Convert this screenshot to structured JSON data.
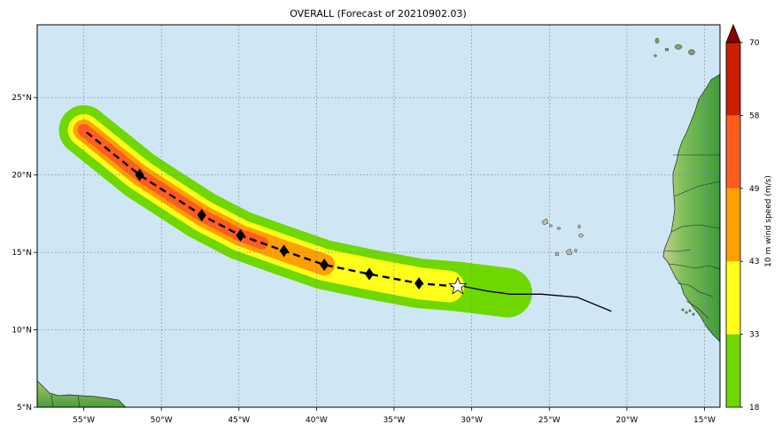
{
  "title": "OVERALL (Forecast of 20210902.03)",
  "map": {
    "lon_range": [
      -58,
      -14
    ],
    "lat_range": [
      5,
      29.7
    ],
    "ocean_color": "#cfe6f5",
    "land_color": "#6fb04d",
    "grid_color": "#7f8e99",
    "lon_ticks": [
      {
        "value": -55,
        "label": "55°W"
      },
      {
        "value": -50,
        "label": "50°W"
      },
      {
        "value": -45,
        "label": "45°W"
      },
      {
        "value": -40,
        "label": "40°W"
      },
      {
        "value": -35,
        "label": "35°W"
      },
      {
        "value": -30,
        "label": "30°W"
      },
      {
        "value": -25,
        "label": "25°W"
      },
      {
        "value": -20,
        "label": "20°W"
      },
      {
        "value": -15,
        "label": "15°W"
      }
    ],
    "lat_ticks": [
      {
        "value": 5,
        "label": "5°N"
      },
      {
        "value": 10,
        "label": "10°N"
      },
      {
        "value": 15,
        "label": "15°N"
      },
      {
        "value": 20,
        "label": "20°N"
      },
      {
        "value": 25,
        "label": "25°N"
      }
    ]
  },
  "colorbar": {
    "label": "10 m wind speed (m/s)",
    "ticks": [
      "18",
      "33",
      "43",
      "49",
      "58",
      "70"
    ],
    "bands": [
      {
        "from": 18,
        "to": 33,
        "color": "#6ed800"
      },
      {
        "from": 33,
        "to": 43,
        "color": "#ffff19"
      },
      {
        "from": 43,
        "to": 49,
        "color": "#ff9f00"
      },
      {
        "from": 49,
        "to": 58,
        "color": "#ff5c20"
      },
      {
        "from": 58,
        "to": 70,
        "color": "#c82000"
      }
    ],
    "extend_color": "#8b0000"
  },
  "chart_data": {
    "type": "map-track",
    "observed_track": [
      [
        -21.0,
        11.2
      ],
      [
        -23.2,
        12.1
      ],
      [
        -25.5,
        12.3
      ],
      [
        -27.5,
        12.3
      ],
      [
        -29.0,
        12.5
      ],
      [
        -30.5,
        12.8
      ]
    ],
    "forecast_track": [
      [
        -30.9,
        12.8
      ],
      [
        -33.4,
        13.0
      ],
      [
        -36.6,
        13.6
      ],
      [
        -39.5,
        14.2
      ],
      [
        -42.1,
        15.1
      ],
      [
        -44.9,
        16.1
      ],
      [
        -47.4,
        17.4
      ],
      [
        -51.4,
        20.0
      ],
      [
        -55.0,
        22.9
      ]
    ],
    "forecast_points": [
      [
        -33.4,
        13.0
      ],
      [
        -36.6,
        13.6
      ],
      [
        -39.5,
        14.2
      ],
      [
        -42.1,
        15.1
      ],
      [
        -44.9,
        16.1
      ],
      [
        -47.4,
        17.4
      ],
      [
        -51.4,
        20.0
      ]
    ],
    "current_position": [
      -30.9,
      12.8
    ],
    "wind_swath": [
      {
        "level": 18,
        "track": [
          [
            -27.7,
            12.4
          ],
          [
            -30.9,
            12.8
          ],
          [
            -33.4,
            13.0
          ],
          [
            -36.6,
            13.6
          ],
          [
            -39.5,
            14.2
          ],
          [
            -42.1,
            15.1
          ],
          [
            -44.9,
            16.1
          ],
          [
            -47.4,
            17.4
          ],
          [
            -51.4,
            20.0
          ],
          [
            -55.0,
            22.9
          ]
        ]
      },
      {
        "level": 33,
        "track": [
          [
            -31.5,
            12.8
          ],
          [
            -33.4,
            13.0
          ],
          [
            -36.6,
            13.6
          ],
          [
            -39.5,
            14.2
          ],
          [
            -42.1,
            15.1
          ],
          [
            -44.9,
            16.1
          ],
          [
            -47.4,
            17.4
          ],
          [
            -51.4,
            20.0
          ],
          [
            -55.0,
            22.9
          ]
        ]
      },
      {
        "level": 43,
        "track": [
          [
            -39.5,
            14.2
          ],
          [
            -42.1,
            15.1
          ],
          [
            -44.9,
            16.1
          ],
          [
            -47.4,
            17.4
          ],
          [
            -51.4,
            20.0
          ],
          [
            -55.0,
            22.9
          ]
        ]
      },
      {
        "level": 49,
        "track": [
          [
            -43.5,
            15.6
          ],
          [
            -44.9,
            16.1
          ],
          [
            -47.4,
            17.4
          ],
          [
            -51.4,
            20.0
          ],
          [
            -55.0,
            22.9
          ]
        ]
      }
    ]
  }
}
